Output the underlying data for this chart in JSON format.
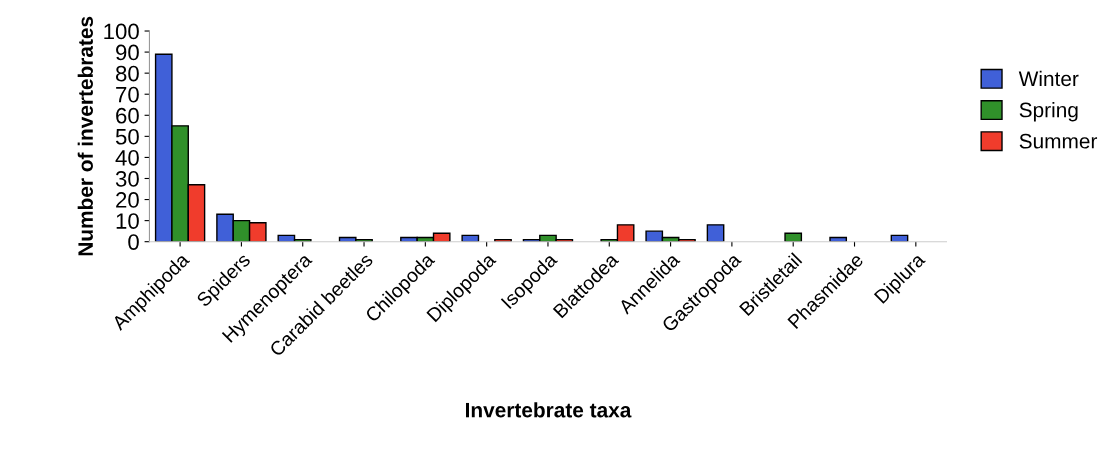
{
  "chart_data": {
    "type": "bar",
    "xlabel": "Invertebrate taxa",
    "ylabel": "Number of invertebrates",
    "categories": [
      "Amphipoda",
      "Spiders",
      "Hymenoptera",
      "Carabid beetles",
      "Chilopoda",
      "Diplopoda",
      "Isopoda",
      "Blattodea",
      "Annelida",
      "Gastropoda",
      "Bristletail",
      "Phasmidae",
      "Diplura"
    ],
    "series": [
      {
        "name": "Winter",
        "color": "#4060d8",
        "values": [
          89,
          13,
          3,
          2,
          2,
          3,
          1,
          null,
          5,
          8,
          null,
          2,
          3
        ]
      },
      {
        "name": "Spring",
        "color": "#30902a",
        "values": [
          55,
          10,
          1,
          1,
          2,
          null,
          3,
          1,
          2,
          null,
          4,
          null,
          null
        ]
      },
      {
        "name": "Summer",
        "color": "#f03c2c",
        "values": [
          27,
          9,
          null,
          null,
          4,
          1,
          1,
          8,
          1,
          null,
          null,
          null,
          null
        ]
      }
    ],
    "ylim": [
      0,
      100
    ],
    "yticks": [
      0,
      10,
      20,
      30,
      40,
      50,
      60,
      70,
      80,
      90,
      100
    ],
    "grid": false,
    "legend": "right"
  }
}
